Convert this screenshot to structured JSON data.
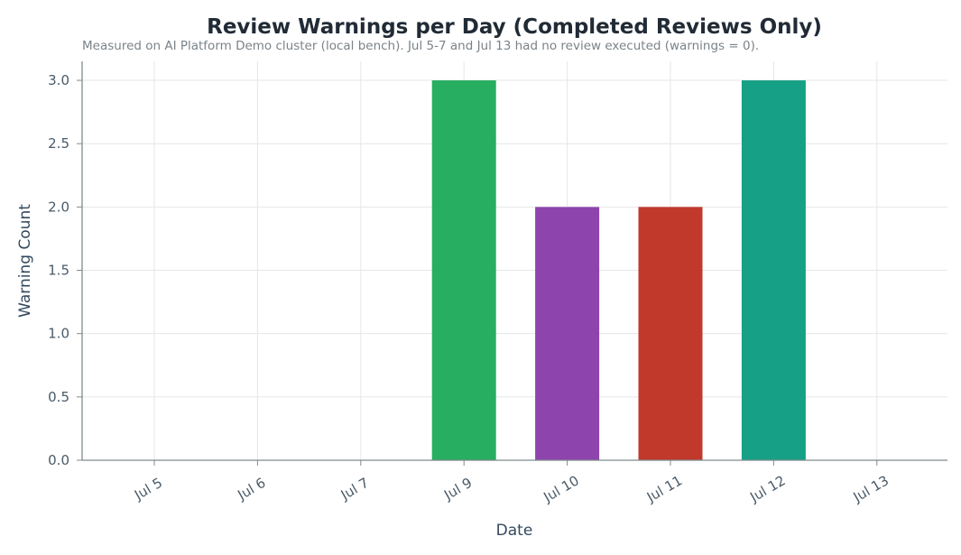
{
  "chart_data": {
    "type": "bar",
    "title": "Review Warnings per Day (Completed Reviews Only)",
    "subtitle": "Measured on AI Platform Demo cluster (local bench). Jul 5-7 and Jul 13 had no review executed (warnings = 0).",
    "xlabel": "Date",
    "ylabel": "Warning Count",
    "categories": [
      "Jul 5",
      "Jul 6",
      "Jul 7",
      "Jul 9",
      "Jul 10",
      "Jul 11",
      "Jul 12",
      "Jul 13"
    ],
    "values": [
      0,
      0,
      0,
      3,
      2,
      2,
      3,
      0
    ],
    "bar_colors": [
      "#27ae60",
      "#27ae60",
      "#27ae60",
      "#27ae60",
      "#8e44ad",
      "#c0392b",
      "#16a085",
      "#27ae60"
    ],
    "ylim": [
      0,
      3.15
    ],
    "yticks": [
      "0.0",
      "0.5",
      "1.0",
      "1.5",
      "2.0",
      "2.5",
      "3.0"
    ],
    "grid": true,
    "legend": false
  }
}
